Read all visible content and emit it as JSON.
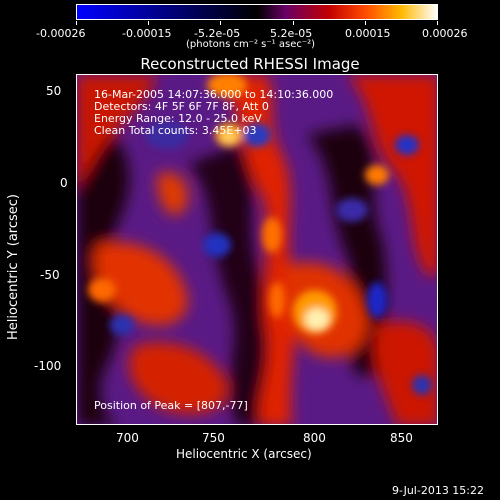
{
  "colorbar": {
    "tick_labels": [
      "-0.00026",
      "-0.00015",
      "-5.2e-05",
      "5.2e-05",
      "0.00015",
      "0.00026"
    ],
    "unit_label": "(photons cm⁻² s⁻¹ asec⁻²)"
  },
  "title": "Reconstructed RHESSI Image",
  "annotations": {
    "time": "16-Mar-2005 14:07:36.000 to 14:10:36.000",
    "detectors": "Detectors: 4F 5F 6F 7F 8F, Att 0",
    "energy": "Energy Range: 12.0 - 25.0 keV",
    "clean": "Clean     Total counts: 3.45E+03",
    "peak": "Position of Peak = [807,-77]"
  },
  "axes": {
    "xlabel": "Heliocentric X (arcsec)",
    "ylabel": "Heliocentric Y (arcsec)",
    "xticks": [
      "700",
      "750",
      "800",
      "850"
    ],
    "yticks": [
      "50",
      "0",
      "-50",
      "-100"
    ]
  },
  "footer_date": "9-Jul-2013 15:22"
}
